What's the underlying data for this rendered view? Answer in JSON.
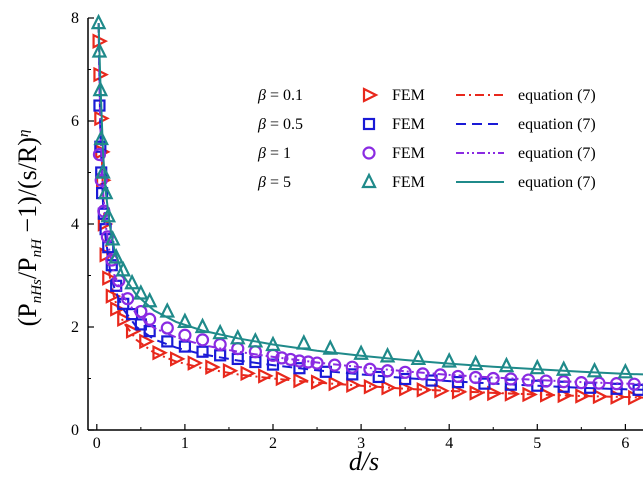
{
  "chart_data": {
    "type": "scatter",
    "xlabel": "d/s",
    "ylabel_parts": {
      "open": "(P",
      "sub1": "nHs",
      "mid": "/P",
      "sub2": "nH",
      "rest": " −1)/(s/R)",
      "sup": "η"
    },
    "xlim": [
      -0.1,
      6.2
    ],
    "ylim": [
      0,
      8
    ],
    "x_ticks": [
      0,
      1,
      2,
      3,
      4,
      5,
      6
    ],
    "y_ticks": [
      0,
      2,
      4,
      6,
      8
    ],
    "grid": false,
    "legend_position": "top-right",
    "series": [
      {
        "beta_label": "= 0.1",
        "marker": "triangle-right",
        "marker_label": "FEM",
        "line_label": "equation (7)",
        "line_style": "dash-dot",
        "color": "#e8281c",
        "points": [
          [
            0.02,
            7.55
          ],
          [
            0.03,
            6.9
          ],
          [
            0.04,
            6.05
          ],
          [
            0.05,
            5.4
          ],
          [
            0.06,
            4.85
          ],
          [
            0.08,
            4.0
          ],
          [
            0.1,
            3.4
          ],
          [
            0.13,
            2.95
          ],
          [
            0.17,
            2.6
          ],
          [
            0.22,
            2.35
          ],
          [
            0.3,
            2.15
          ],
          [
            0.4,
            1.92
          ],
          [
            0.55,
            1.72
          ],
          [
            0.7,
            1.5
          ],
          [
            0.9,
            1.38
          ],
          [
            1.1,
            1.3
          ],
          [
            1.3,
            1.22
          ],
          [
            1.5,
            1.15
          ],
          [
            1.7,
            1.1
          ],
          [
            1.9,
            1.05
          ],
          [
            2.1,
            1.0
          ],
          [
            2.3,
            0.96
          ],
          [
            2.5,
            0.93
          ],
          [
            2.7,
            0.9
          ],
          [
            2.9,
            0.87
          ],
          [
            3.1,
            0.84
          ],
          [
            3.3,
            0.82
          ],
          [
            3.5,
            0.8
          ],
          [
            3.7,
            0.78
          ],
          [
            3.9,
            0.76
          ],
          [
            4.1,
            0.74
          ],
          [
            4.3,
            0.72
          ],
          [
            4.5,
            0.71
          ],
          [
            4.7,
            0.7
          ],
          [
            4.9,
            0.69
          ],
          [
            5.1,
            0.68
          ],
          [
            5.3,
            0.67
          ],
          [
            5.5,
            0.66
          ],
          [
            5.7,
            0.65
          ],
          [
            5.9,
            0.64
          ],
          [
            6.1,
            0.63
          ]
        ],
        "curve": [
          [
            0.02,
            7.9
          ],
          [
            0.04,
            6.2
          ],
          [
            0.07,
            4.6
          ],
          [
            0.1,
            3.7
          ],
          [
            0.15,
            2.95
          ],
          [
            0.2,
            2.55
          ],
          [
            0.3,
            2.1
          ],
          [
            0.45,
            1.75
          ],
          [
            0.65,
            1.5
          ],
          [
            0.9,
            1.33
          ],
          [
            1.2,
            1.2
          ],
          [
            1.6,
            1.08
          ],
          [
            2.0,
            1.0
          ],
          [
            2.5,
            0.92
          ],
          [
            3.0,
            0.86
          ],
          [
            3.5,
            0.8
          ],
          [
            4.0,
            0.76
          ],
          [
            4.5,
            0.72
          ],
          [
            5.0,
            0.69
          ],
          [
            5.5,
            0.66
          ],
          [
            6.0,
            0.64
          ],
          [
            6.2,
            0.63
          ]
        ]
      },
      {
        "beta_label": "= 0.5",
        "marker": "square",
        "marker_label": "FEM",
        "line_label": "equation (7)",
        "line_style": "dash",
        "color": "#1a1ad6",
        "points": [
          [
            0.03,
            6.3
          ],
          [
            0.04,
            5.5
          ],
          [
            0.05,
            5.0
          ],
          [
            0.06,
            4.6
          ],
          [
            0.08,
            4.2
          ],
          [
            0.1,
            3.9
          ],
          [
            0.13,
            3.55
          ],
          [
            0.17,
            3.2
          ],
          [
            0.22,
            2.8
          ],
          [
            0.3,
            2.45
          ],
          [
            0.4,
            2.25
          ],
          [
            0.5,
            2.05
          ],
          [
            0.6,
            1.92
          ],
          [
            0.8,
            1.72
          ],
          [
            1.0,
            1.62
          ],
          [
            1.2,
            1.52
          ],
          [
            1.4,
            1.45
          ],
          [
            1.6,
            1.38
          ],
          [
            1.8,
            1.32
          ],
          [
            2.0,
            1.27
          ],
          [
            2.3,
            1.2
          ],
          [
            2.6,
            1.13
          ],
          [
            2.9,
            1.08
          ],
          [
            3.2,
            1.03
          ],
          [
            3.5,
            0.99
          ],
          [
            3.8,
            0.96
          ],
          [
            4.1,
            0.93
          ],
          [
            4.4,
            0.9
          ],
          [
            4.7,
            0.88
          ],
          [
            5.0,
            0.86
          ],
          [
            5.3,
            0.84
          ],
          [
            5.6,
            0.82
          ],
          [
            5.9,
            0.8
          ],
          [
            6.15,
            0.78
          ]
        ],
        "curve": [
          [
            0.02,
            7.9
          ],
          [
            0.04,
            5.8
          ],
          [
            0.07,
            4.4
          ],
          [
            0.1,
            3.75
          ],
          [
            0.15,
            3.1
          ],
          [
            0.2,
            2.75
          ],
          [
            0.3,
            2.35
          ],
          [
            0.45,
            2.0
          ],
          [
            0.65,
            1.76
          ],
          [
            0.9,
            1.6
          ],
          [
            1.2,
            1.47
          ],
          [
            1.6,
            1.35
          ],
          [
            2.0,
            1.26
          ],
          [
            2.5,
            1.16
          ],
          [
            3.0,
            1.08
          ],
          [
            3.5,
            1.01
          ],
          [
            4.0,
            0.95
          ],
          [
            4.5,
            0.9
          ],
          [
            5.0,
            0.86
          ],
          [
            5.5,
            0.82
          ],
          [
            6.0,
            0.79
          ],
          [
            6.2,
            0.78
          ]
        ]
      },
      {
        "beta_label": "= 1",
        "marker": "circle",
        "marker_label": "FEM",
        "line_label": "equation (7)",
        "line_style": "dash-dot-dot",
        "color": "#8a2be2",
        "points": [
          [
            0.03,
            5.35
          ],
          [
            0.05,
            4.85
          ],
          [
            0.08,
            4.25
          ],
          [
            0.12,
            3.75
          ],
          [
            0.17,
            3.3
          ],
          [
            0.25,
            2.9
          ],
          [
            0.35,
            2.55
          ],
          [
            0.5,
            2.3
          ],
          [
            0.6,
            2.15
          ],
          [
            0.8,
            1.98
          ],
          [
            1.0,
            1.84
          ],
          [
            1.2,
            1.75
          ],
          [
            1.4,
            1.66
          ],
          [
            1.6,
            1.58
          ],
          [
            1.8,
            1.52
          ],
          [
            2.0,
            1.45
          ],
          [
            2.1,
            1.4
          ],
          [
            2.2,
            1.37
          ],
          [
            2.3,
            1.34
          ],
          [
            2.4,
            1.32
          ],
          [
            2.5,
            1.3
          ],
          [
            2.7,
            1.26
          ],
          [
            2.9,
            1.22
          ],
          [
            3.1,
            1.18
          ],
          [
            3.3,
            1.15
          ],
          [
            3.5,
            1.12
          ],
          [
            3.7,
            1.09
          ],
          [
            3.9,
            1.07
          ],
          [
            4.1,
            1.04
          ],
          [
            4.3,
            1.02
          ],
          [
            4.5,
            1.0
          ],
          [
            4.7,
            0.99
          ],
          [
            4.9,
            0.97
          ],
          [
            5.1,
            0.95
          ],
          [
            5.3,
            0.94
          ],
          [
            5.5,
            0.92
          ],
          [
            5.7,
            0.91
          ],
          [
            5.9,
            0.9
          ],
          [
            6.1,
            0.89
          ]
        ],
        "curve": [
          [
            0.02,
            7.9
          ],
          [
            0.04,
            5.9
          ],
          [
            0.07,
            4.65
          ],
          [
            0.1,
            4.0
          ],
          [
            0.15,
            3.4
          ],
          [
            0.2,
            3.0
          ],
          [
            0.3,
            2.6
          ],
          [
            0.45,
            2.25
          ],
          [
            0.65,
            1.98
          ],
          [
            0.9,
            1.8
          ],
          [
            1.2,
            1.65
          ],
          [
            1.6,
            1.52
          ],
          [
            2.0,
            1.42
          ],
          [
            2.5,
            1.31
          ],
          [
            3.0,
            1.22
          ],
          [
            3.5,
            1.14
          ],
          [
            4.0,
            1.07
          ],
          [
            4.5,
            1.02
          ],
          [
            5.0,
            0.97
          ],
          [
            5.5,
            0.93
          ],
          [
            6.0,
            0.9
          ],
          [
            6.2,
            0.89
          ]
        ]
      },
      {
        "beta_label": "= 5",
        "marker": "triangle-up",
        "marker_label": "FEM",
        "line_label": "equation (7)",
        "line_style": "solid",
        "color": "#1f8a8a",
        "points": [
          [
            0.02,
            7.9
          ],
          [
            0.03,
            7.35
          ],
          [
            0.04,
            6.6
          ],
          [
            0.05,
            5.65
          ],
          [
            0.07,
            5.0
          ],
          [
            0.1,
            4.6
          ],
          [
            0.13,
            4.15
          ],
          [
            0.18,
            3.7
          ],
          [
            0.22,
            3.35
          ],
          [
            0.3,
            3.1
          ],
          [
            0.4,
            2.85
          ],
          [
            0.5,
            2.65
          ],
          [
            0.6,
            2.5
          ],
          [
            0.8,
            2.3
          ],
          [
            1.0,
            2.1
          ],
          [
            1.2,
            2.0
          ],
          [
            1.4,
            1.88
          ],
          [
            1.6,
            1.78
          ],
          [
            1.8,
            1.72
          ],
          [
            2.0,
            1.65
          ],
          [
            2.35,
            1.68
          ],
          [
            2.65,
            1.58
          ],
          [
            3.0,
            1.48
          ],
          [
            3.3,
            1.43
          ],
          [
            3.65,
            1.38
          ],
          [
            4.0,
            1.33
          ],
          [
            4.3,
            1.28
          ],
          [
            4.65,
            1.24
          ],
          [
            5.0,
            1.2
          ],
          [
            5.3,
            1.17
          ],
          [
            5.65,
            1.14
          ],
          [
            6.0,
            1.12
          ]
        ],
        "curve": [
          [
            0.02,
            7.9
          ],
          [
            0.04,
            6.8
          ],
          [
            0.07,
            5.4
          ],
          [
            0.1,
            4.65
          ],
          [
            0.15,
            3.95
          ],
          [
            0.2,
            3.5
          ],
          [
            0.3,
            3.0
          ],
          [
            0.45,
            2.62
          ],
          [
            0.65,
            2.32
          ],
          [
            0.9,
            2.1
          ],
          [
            1.2,
            1.93
          ],
          [
            1.6,
            1.78
          ],
          [
            2.0,
            1.66
          ],
          [
            2.5,
            1.54
          ],
          [
            3.0,
            1.44
          ],
          [
            3.5,
            1.36
          ],
          [
            4.0,
            1.29
          ],
          [
            4.5,
            1.23
          ],
          [
            5.0,
            1.18
          ],
          [
            5.5,
            1.13
          ],
          [
            6.0,
            1.09
          ],
          [
            6.2,
            1.08
          ]
        ]
      }
    ]
  }
}
